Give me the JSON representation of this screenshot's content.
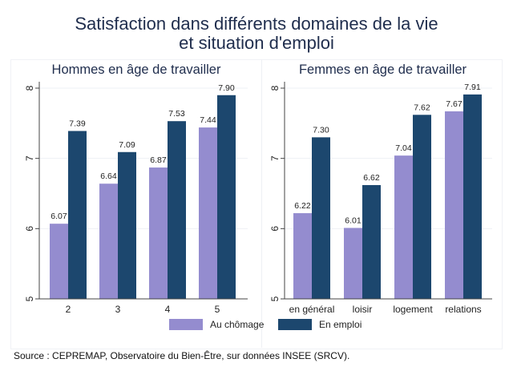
{
  "title_lines": [
    "Satisfaction dans différents domaines de la vie",
    "et situation d'emploi"
  ],
  "colors": {
    "au_chomage": "#948ccf",
    "en_emploi": "#1c476e",
    "axis": "#444444",
    "grid": "#eef1f5"
  },
  "legend": [
    {
      "label": "Au chômage",
      "color_key": "au_chomage"
    },
    {
      "label": "En emploi",
      "color_key": "en_emploi"
    }
  ],
  "source": "Source : CEPREMAP, Observatoire du Bien-Être, sur données INSEE (SRCV).",
  "chart_data": [
    {
      "type": "bar",
      "title": "Hommes en âge de travailler",
      "categories": [
        "2",
        "3",
        "4",
        "5"
      ],
      "series": [
        {
          "name": "Au chômage",
          "values": [
            6.07,
            6.64,
            6.87,
            7.44
          ],
          "labels": [
            "6.07",
            "6.64",
            "6.87",
            "7.44"
          ]
        },
        {
          "name": "En emploi",
          "values": [
            7.39,
            7.09,
            7.53,
            7.9
          ],
          "labels": [
            "7.39",
            "7.09",
            "7.53",
            "7.90"
          ]
        }
      ],
      "ylim": [
        5,
        8
      ],
      "yticks": [
        "5",
        "6",
        "7",
        "8"
      ],
      "grid": true,
      "xlabel": "",
      "ylabel": ""
    },
    {
      "type": "bar",
      "title": "Femmes en âge de travailler",
      "categories": [
        "en général",
        "loisir",
        "logement",
        "relations"
      ],
      "series": [
        {
          "name": "Au chômage",
          "values": [
            6.22,
            6.01,
            7.04,
            7.67
          ],
          "labels": [
            "6.22",
            "6.01",
            "7.04",
            "7.67"
          ]
        },
        {
          "name": "En emploi",
          "values": [
            7.3,
            6.62,
            7.62,
            7.91
          ],
          "labels": [
            "7.30",
            "6.62",
            "7.62",
            "7.91"
          ]
        }
      ],
      "ylim": [
        5,
        8
      ],
      "yticks": [
        "5",
        "6",
        "7",
        "8"
      ],
      "grid": true,
      "xlabel": "",
      "ylabel": ""
    }
  ],
  "legend_position": "bottom-center"
}
